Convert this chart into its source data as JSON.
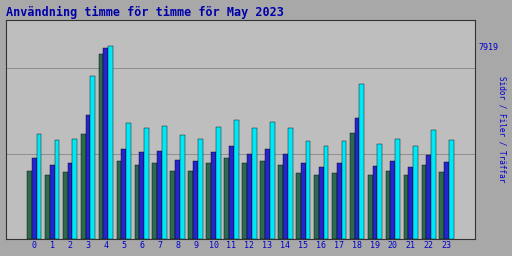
{
  "title": "Användning timme för timme för May 2023",
  "ylabel": "Sidor / Filer / Träffar",
  "xlabel_ticks": [
    "0",
    "1",
    "2",
    "3",
    "4",
    "5",
    "6",
    "7",
    "8",
    "9",
    "10",
    "11",
    "12",
    "13",
    "14",
    "15",
    "16",
    "17",
    "18",
    "19",
    "20",
    "21",
    "22",
    "23"
  ],
  "ytick_label": "7919",
  "colors": [
    "#2d6b50",
    "#2525d0",
    "#00e8f8"
  ],
  "background_color": "#a8a8a8",
  "plot_bg": "#bebebe",
  "bar_width": 0.27,
  "green_vals": [
    2800,
    2600,
    2750,
    4300,
    7600,
    3200,
    3050,
    3100,
    2800,
    2800,
    3100,
    3300,
    3100,
    3200,
    3050,
    2700,
    2600,
    2700,
    4350,
    2600,
    2800,
    2600,
    3050,
    2750
  ],
  "blue_vals": [
    3300,
    3050,
    3100,
    5100,
    7850,
    3700,
    3550,
    3600,
    3250,
    3200,
    3550,
    3800,
    3500,
    3700,
    3500,
    3100,
    2950,
    3100,
    4950,
    3000,
    3200,
    2950,
    3450,
    3150
  ],
  "cyan_vals": [
    4300,
    4050,
    4100,
    6700,
    7919,
    4750,
    4550,
    4650,
    4250,
    4100,
    4600,
    4900,
    4550,
    4800,
    4550,
    4000,
    3800,
    4000,
    6350,
    3900,
    4100,
    3800,
    4450,
    4050
  ],
  "ylim": [
    0,
    9000
  ],
  "font_color": "#0000cc",
  "title_font_color": "#0000aa",
  "grid_vals": [
    3500,
    7000
  ]
}
